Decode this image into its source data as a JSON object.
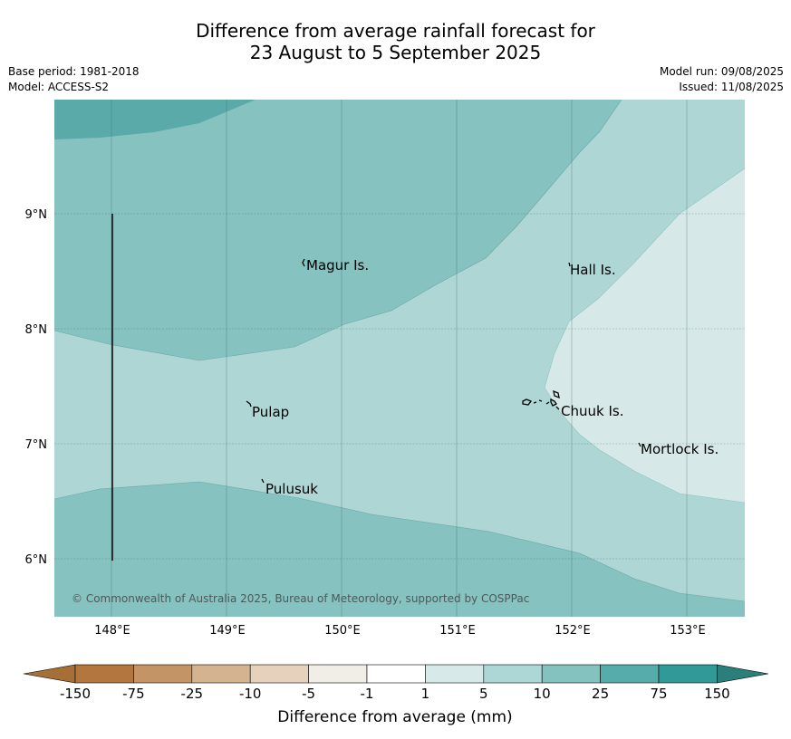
{
  "title": {
    "line1": "Difference from average rainfall forecast for",
    "line2": "23 August to 5 September 2025"
  },
  "meta": {
    "base_period": "Base period: 1981-2018",
    "model": "Model: ACCESS-S2",
    "model_run": "Model run: 09/08/2025",
    "issued": "Issued: 11/08/2025"
  },
  "map": {
    "lon_ticks": [
      "148°E",
      "149°E",
      "150°E",
      "151°E",
      "152°E",
      "153°E"
    ],
    "lat_ticks": [
      "9°N",
      "8°N",
      "7°N",
      "6°N"
    ],
    "places": [
      {
        "name": "Magur Is."
      },
      {
        "name": "Hall Is."
      },
      {
        "name": "Pulap"
      },
      {
        "name": "Chuuk Is."
      },
      {
        "name": "Mortlock Is."
      },
      {
        "name": "Pulusuk"
      }
    ],
    "copyright": "© Commonwealth of Australia 2025, Bureau of Meteorology, supported by COSPPac",
    "zone_colors": {
      "25_to_75": "#5aaaaa",
      "10_to_25": "#85c2c0",
      "5_to_10": "#aed6d5",
      "1_to_5": "#d6e9e8"
    }
  },
  "colorbar": {
    "title": "Difference from average (mm)",
    "labels": [
      "-150",
      "-75",
      "-25",
      "-10",
      "-5",
      "-1",
      "1",
      "5",
      "10",
      "25",
      "75",
      "150"
    ],
    "colors": [
      "#a56f36",
      "#b2763e",
      "#c39566",
      "#d4b390",
      "#e6d1bd",
      "#f1eee7",
      "#ffffff",
      "#d7eae9",
      "#add7d6",
      "#84c2c0",
      "#56acab",
      "#2f9a97",
      "#2b7f7b"
    ]
  }
}
